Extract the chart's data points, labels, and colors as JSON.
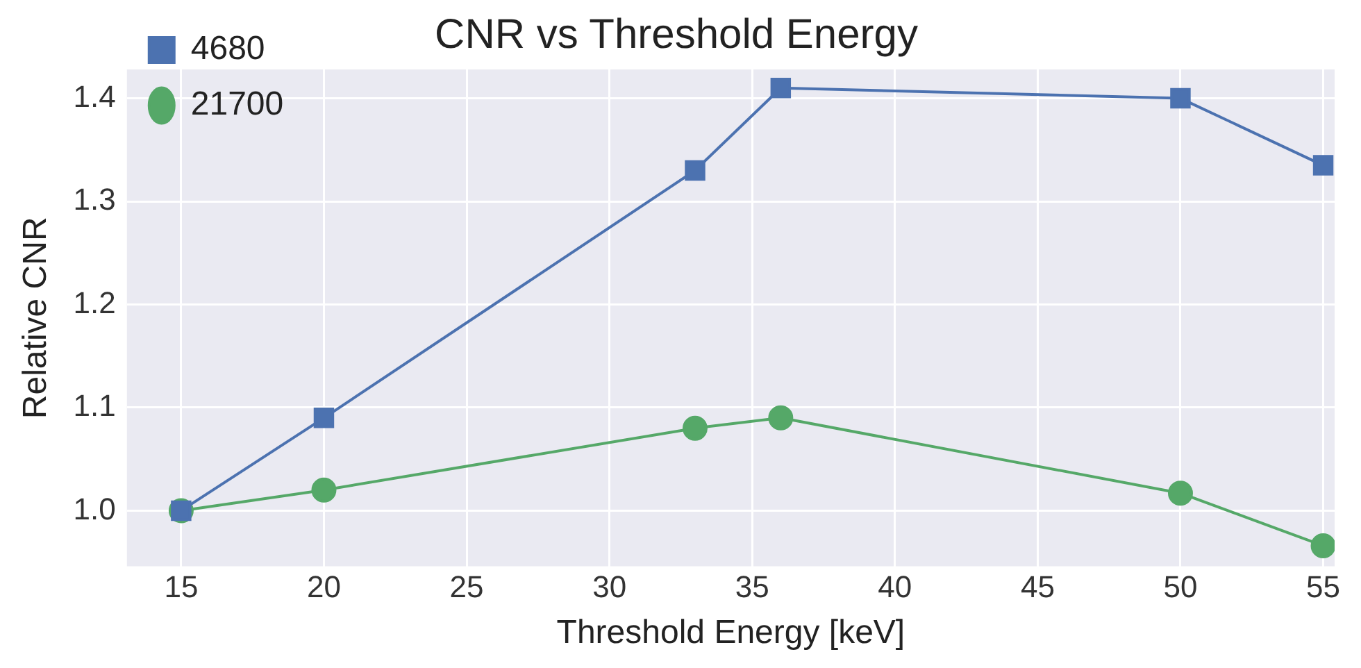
{
  "chart_data": {
    "type": "line",
    "title": "CNR vs Threshold Energy",
    "xlabel": "Threshold Energy [keV]",
    "ylabel": "Relative CNR",
    "x": [
      15,
      20,
      33,
      36,
      50,
      55
    ],
    "series": [
      {
        "name": "4680",
        "color": "#4c72b0",
        "marker": "square",
        "values": [
          1.0,
          1.09,
          1.33,
          1.41,
          1.4,
          1.335
        ]
      },
      {
        "name": "21700",
        "color": "#55a868",
        "marker": "circle",
        "values": [
          1.0,
          1.02,
          1.08,
          1.09,
          1.017,
          0.966
        ]
      }
    ],
    "xlim": [
      13.1,
      55.4
    ],
    "xticks": [
      15,
      20,
      25,
      30,
      35,
      40,
      45,
      50,
      55
    ],
    "ylim": [
      0.946,
      1.428
    ],
    "yticks": [
      {
        "value": 1,
        "label": "1.0"
      },
      1.1,
      1.2,
      1.3,
      1.4
    ],
    "grid": true,
    "legend": "top left",
    "line_style": "solid"
  }
}
